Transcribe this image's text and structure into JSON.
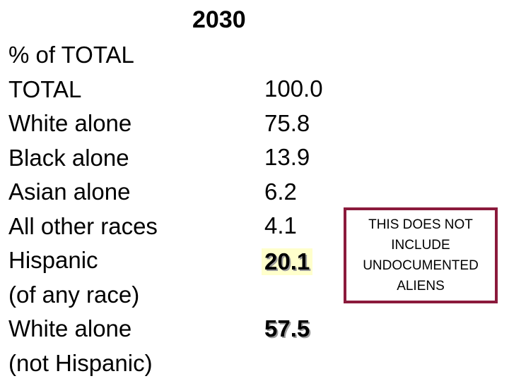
{
  "header": {
    "year": "2030"
  },
  "labels": [
    "% of TOTAL",
    "TOTAL",
    "White alone",
    "Black alone",
    "Asian alone",
    "All other races",
    "Hispanic",
    "(of any race)",
    "White alone",
    "(not Hispanic)"
  ],
  "values": {
    "total": "100.0",
    "white_alone": "75.8",
    "black_alone": "13.9",
    "asian_alone": "6.2",
    "all_other_races": "4.1",
    "hispanic": "20.1",
    "white_not_hispanic": "57.5"
  },
  "note": {
    "text": "THIS DOES NOT\nINCLUDE\nUNDOCUMENTED\nALIENS",
    "border_color": "#8b1a3c"
  },
  "colors": {
    "highlight": "#ffffcc",
    "shadow": "#9a9a9a"
  }
}
